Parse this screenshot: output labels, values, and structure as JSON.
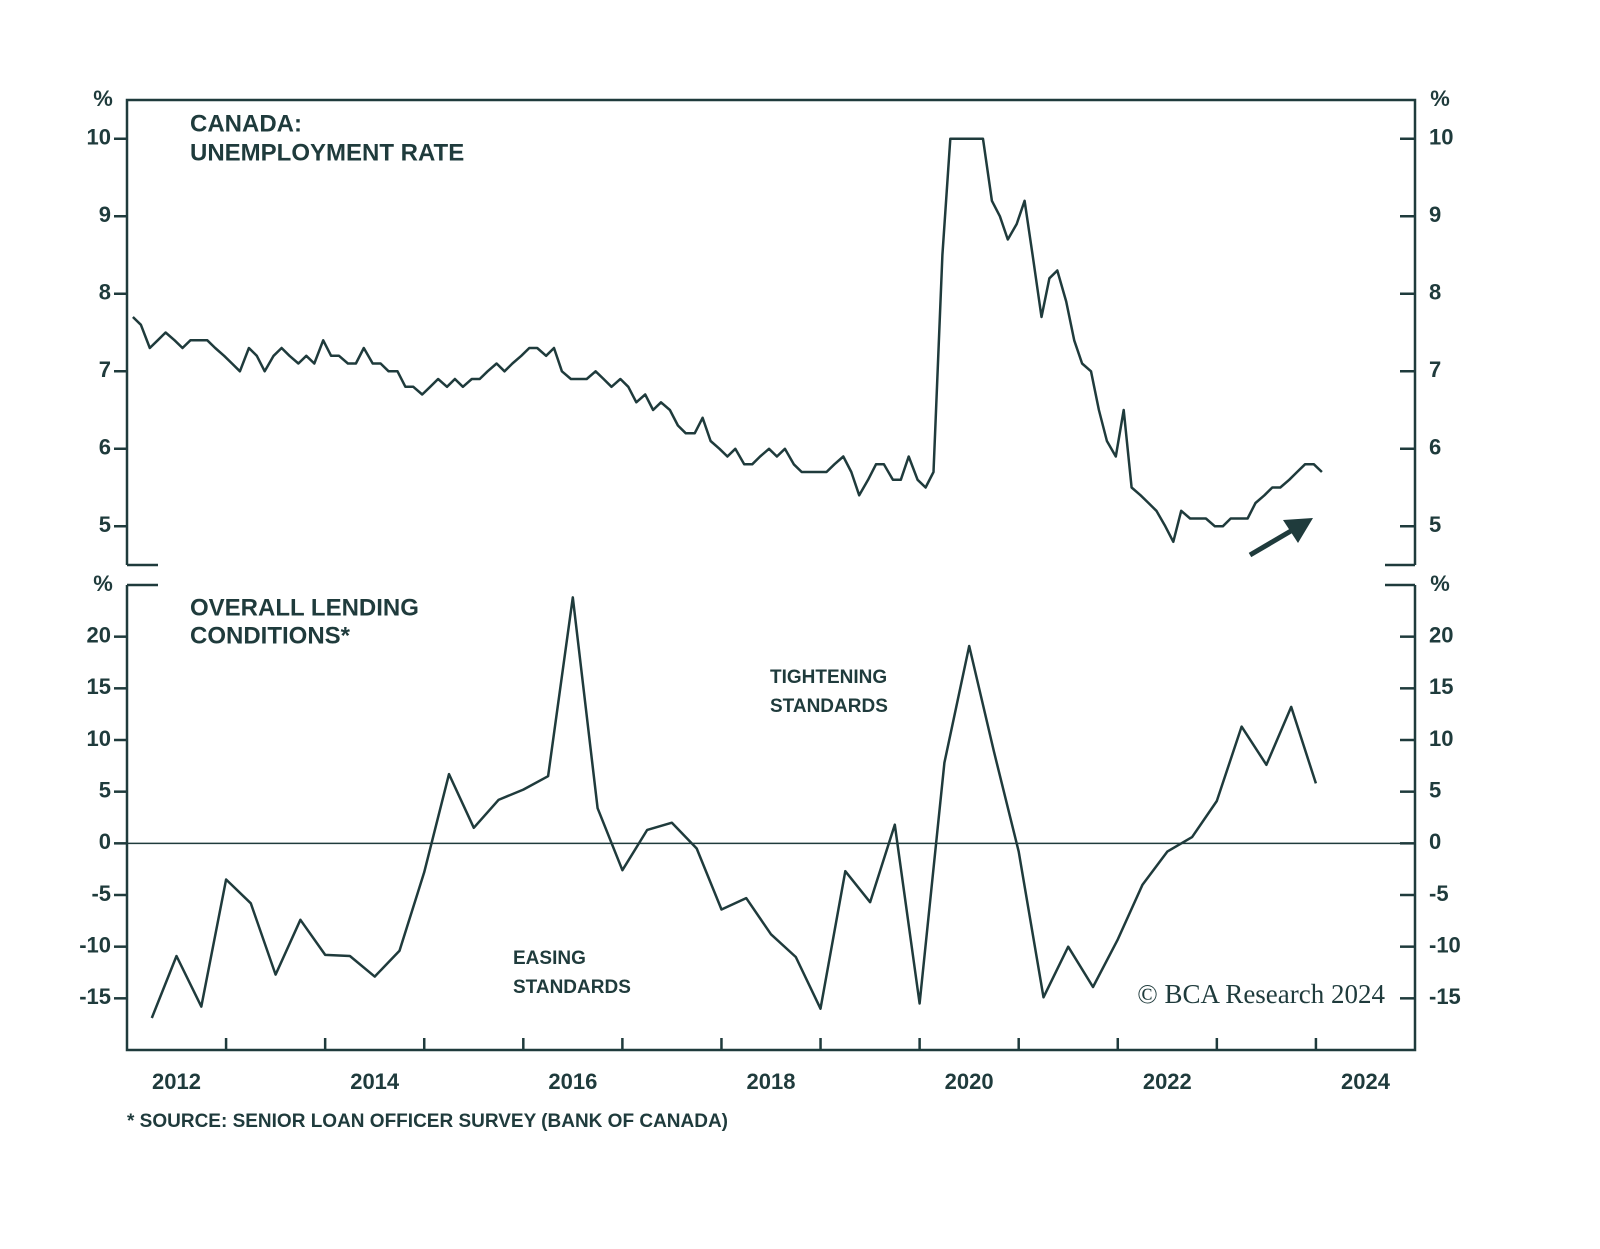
{
  "chart_data": [
    {
      "type": "line",
      "title": [
        "CANADA:",
        "UNEMPLOYMENT RATE"
      ],
      "y_unit": "%",
      "color": "#1f3b3c",
      "xlim": [
        2012,
        2025
      ],
      "ylim": [
        4.5,
        10.5
      ],
      "yticks": [
        5,
        6,
        7,
        8,
        9,
        10
      ],
      "x": [
        2012.06,
        2012.14,
        2012.23,
        2012.31,
        2012.39,
        2012.48,
        2012.56,
        2012.64,
        2012.73,
        2012.81,
        2012.89,
        2012.98,
        2013.06,
        2013.14,
        2013.23,
        2013.31,
        2013.39,
        2013.48,
        2013.56,
        2013.64,
        2013.73,
        2013.81,
        2013.89,
        2013.98,
        2014.06,
        2014.14,
        2014.23,
        2014.31,
        2014.39,
        2014.48,
        2014.56,
        2014.64,
        2014.73,
        2014.81,
        2014.89,
        2014.98,
        2015.06,
        2015.14,
        2015.23,
        2015.31,
        2015.39,
        2015.48,
        2015.56,
        2015.64,
        2015.73,
        2015.81,
        2015.89,
        2015.98,
        2016.06,
        2016.14,
        2016.23,
        2016.31,
        2016.39,
        2016.48,
        2016.56,
        2016.64,
        2016.73,
        2016.81,
        2016.89,
        2016.98,
        2017.06,
        2017.14,
        2017.23,
        2017.31,
        2017.39,
        2017.48,
        2017.56,
        2017.64,
        2017.73,
        2017.81,
        2017.89,
        2017.98,
        2018.06,
        2018.14,
        2018.23,
        2018.31,
        2018.39,
        2018.48,
        2018.56,
        2018.64,
        2018.73,
        2018.81,
        2018.89,
        2018.98,
        2019.06,
        2019.14,
        2019.23,
        2019.31,
        2019.39,
        2019.48,
        2019.56,
        2019.64,
        2019.73,
        2019.81,
        2019.89,
        2019.98,
        2020.06,
        2020.14,
        2020.23,
        2020.31,
        2020.39,
        2020.48,
        2020.56,
        2020.64,
        2020.73,
        2020.81,
        2020.89,
        2020.98,
        2021.06,
        2021.14,
        2021.23,
        2021.31,
        2021.39,
        2021.48,
        2021.56,
        2021.64,
        2021.73,
        2021.81,
        2021.89,
        2021.98,
        2022.06,
        2022.14,
        2022.23,
        2022.31,
        2022.39,
        2022.48,
        2022.56,
        2022.64,
        2022.73,
        2022.81,
        2022.89,
        2022.98,
        2023.06,
        2023.14,
        2023.23,
        2023.31,
        2023.39,
        2023.48,
        2023.56,
        2023.64,
        2023.73,
        2023.81,
        2023.89,
        2023.98,
        2024.06
      ],
      "values": [
        7.7,
        7.6,
        7.3,
        7.4,
        7.5,
        7.4,
        7.3,
        7.4,
        7.4,
        7.4,
        7.3,
        7.2,
        7.1,
        7,
        7.3,
        7.2,
        7,
        7.2,
        7.3,
        7.2,
        7.1,
        7.2,
        7.1,
        7.4,
        7.2,
        7.2,
        7.1,
        7.1,
        7.3,
        7.1,
        7.1,
        7,
        7,
        6.8,
        6.8,
        6.7,
        6.8,
        6.9,
        6.8,
        6.9,
        6.8,
        6.9,
        6.9,
        7,
        7.1,
        7,
        7.1,
        7.2,
        7.3,
        7.3,
        7.2,
        7.3,
        7,
        6.9,
        6.9,
        6.9,
        7,
        6.9,
        6.8,
        6.9,
        6.8,
        6.6,
        6.7,
        6.5,
        6.6,
        6.5,
        6.3,
        6.2,
        6.2,
        6.4,
        6.1,
        6,
        5.9,
        6,
        5.8,
        5.8,
        5.9,
        6,
        5.9,
        6,
        5.8,
        5.7,
        5.7,
        5.7,
        5.7,
        5.8,
        5.9,
        5.7,
        5.4,
        5.6,
        5.8,
        5.8,
        5.6,
        5.6,
        5.9,
        5.6,
        5.5,
        5.7,
        8.5,
        10,
        10,
        10,
        10,
        10,
        9.2,
        9,
        8.7,
        8.9,
        9.2,
        8.5,
        7.7,
        8.2,
        8.3,
        7.9,
        7.4,
        7.1,
        7,
        6.5,
        6.1,
        5.9,
        6.5,
        5.5,
        5.4,
        5.3,
        5.2,
        5,
        4.8,
        5.2,
        5.1,
        5.1,
        5.1,
        5,
        5,
        5.1,
        5.1,
        5.1,
        5.3,
        5.4,
        5.5,
        5.5,
        5.6,
        5.7,
        5.8,
        5.8,
        5.7
      ]
    },
    {
      "type": "line",
      "title": [
        "OVERALL LENDING",
        "CONDITIONS*"
      ],
      "y_unit": "%",
      "color": "#1f3b3c",
      "xlim": [
        2012,
        2025
      ],
      "ylim": [
        -20,
        25
      ],
      "yticks": [
        -15,
        -10,
        -5,
        0,
        5,
        10,
        15,
        20
      ],
      "zero_line": true,
      "xticks": [
        {
          "value": 2012.5,
          "label": "2012"
        },
        {
          "value": 2014.5,
          "label": "2014"
        },
        {
          "value": 2016.5,
          "label": "2016"
        },
        {
          "value": 2018.5,
          "label": "2018"
        },
        {
          "value": 2020.5,
          "label": "2020"
        },
        {
          "value": 2022.5,
          "label": "2022"
        },
        {
          "value": 2024.5,
          "label": "2024"
        }
      ],
      "xminor": [
        2013,
        2014,
        2015,
        2016,
        2017,
        2018,
        2019,
        2020,
        2021,
        2022,
        2023,
        2024
      ],
      "annotations": [
        [
          "TIGHTENING",
          "STANDARDS"
        ],
        [
          "EASING",
          "STANDARDS"
        ]
      ],
      "x": [
        2012.25,
        2012.5,
        2012.75,
        2013,
        2013.25,
        2013.5,
        2013.75,
        2014,
        2014.25,
        2014.5,
        2014.75,
        2015,
        2015.25,
        2015.5,
        2015.75,
        2016,
        2016.25,
        2016.5,
        2016.75,
        2017,
        2017.25,
        2017.5,
        2017.75,
        2018,
        2018.25,
        2018.5,
        2018.75,
        2019,
        2019.25,
        2019.5,
        2019.75,
        2020,
        2020.25,
        2020.5,
        2020.75,
        2021,
        2021.25,
        2021.5,
        2021.75,
        2022,
        2022.25,
        2022.5,
        2022.75,
        2023,
        2023.25,
        2023.5,
        2023.75,
        2024
      ],
      "values": [
        -16.9,
        -10.9,
        -15.8,
        -3.5,
        -5.8,
        -12.7,
        -7.4,
        -10.8,
        -10.9,
        -12.9,
        -10.4,
        -2.8,
        6.7,
        1.5,
        4.2,
        5.2,
        6.5,
        23.8,
        3.4,
        -2.6,
        1.3,
        2,
        -0.5,
        -6.4,
        -5.3,
        -8.8,
        -11,
        -16,
        -2.7,
        -5.7,
        1.8,
        -15.5,
        7.8,
        19.1,
        8.9,
        -0.8,
        -14.9,
        -10,
        -13.9,
        -9.3,
        -4,
        -0.8,
        0.6,
        4.1,
        11.3,
        7.6,
        13.2,
        5.8
      ]
    }
  ],
  "credit": "© BCA Research 2024",
  "source": "* SOURCE: SENIOR LOAN OFFICER SURVEY (BANK OF CANADA)"
}
